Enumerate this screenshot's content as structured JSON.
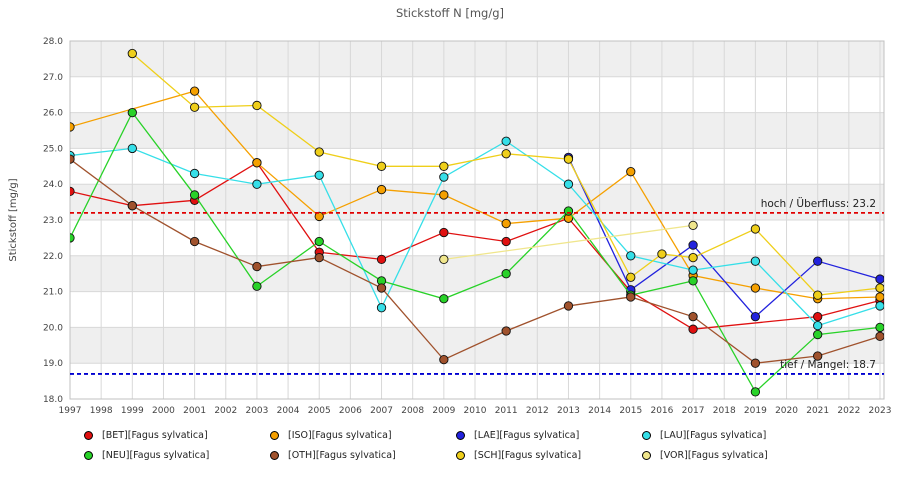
{
  "chart_data": {
    "type": "line",
    "title": "Stickstoff N [mg/g]",
    "ylabel": "Stickstoff [mg/g]",
    "ylim": [
      18.0,
      28.0
    ],
    "ytick_step": 1.0,
    "ytick_format_decimals": 1,
    "xlim": [
      1997,
      2023
    ],
    "xticks": [
      1997,
      1998,
      1999,
      2000,
      2001,
      2002,
      2003,
      2004,
      2005,
      2006,
      2007,
      2008,
      2009,
      2010,
      2011,
      2012,
      2013,
      2014,
      2015,
      2016,
      2017,
      2018,
      2019,
      2020,
      2021,
      2022,
      2023
    ],
    "grid": true,
    "band_fill_ranges": [
      [
        19,
        20
      ],
      [
        21,
        22
      ],
      [
        23,
        24
      ],
      [
        25,
        26
      ],
      [
        27,
        28
      ]
    ],
    "band_fill_color": "#efefef",
    "grid_color": "#d8d8d8",
    "border_color": "#c0c0c0",
    "legend_position": "bottom",
    "thresholds": [
      {
        "label": "hoch / Überfluss: 23.2",
        "value": 23.2,
        "color": "#e00000"
      },
      {
        "label": "tief / Mangel: 18.7",
        "value": 18.7,
        "color": "#0000d0"
      }
    ],
    "series": [
      {
        "name": "[BET][Fagus sylvatica]",
        "color": "#e01010",
        "points": [
          [
            1997,
            23.8
          ],
          [
            1999,
            23.4
          ],
          [
            2001,
            23.55
          ],
          [
            2003,
            24.6
          ],
          [
            2005,
            22.1
          ],
          [
            2007,
            21.9
          ],
          [
            2009,
            22.65
          ],
          [
            2011,
            22.4
          ],
          [
            2013,
            23.05
          ],
          [
            2015,
            21.0
          ],
          [
            2017,
            19.95
          ],
          [
            2021,
            20.3
          ],
          [
            2023,
            20.75
          ]
        ]
      },
      {
        "name": "[ISO][Fagus sylvatica]",
        "color": "#f5a000",
        "points": [
          [
            1997,
            25.6
          ],
          [
            2001,
            26.6
          ],
          [
            2003,
            24.6
          ],
          [
            2005,
            23.1
          ],
          [
            2007,
            23.85
          ],
          [
            2009,
            23.7
          ],
          [
            2011,
            22.9
          ],
          [
            2013,
            23.05
          ],
          [
            2015,
            24.35
          ],
          [
            2017,
            21.45
          ],
          [
            2019,
            21.1
          ],
          [
            2021,
            20.8
          ],
          [
            2023,
            20.85
          ]
        ]
      },
      {
        "name": "[LAE][Fagus sylvatica]",
        "color": "#2222dd",
        "points": [
          [
            2013,
            24.75
          ],
          [
            2015,
            21.05
          ],
          [
            2017,
            22.3
          ],
          [
            2019,
            20.3
          ],
          [
            2021,
            21.85
          ],
          [
            2023,
            21.35
          ]
        ]
      },
      {
        "name": "[LAU][Fagus sylvatica]",
        "color": "#35dfe8",
        "points": [
          [
            1997,
            24.8
          ],
          [
            1999,
            25.0
          ],
          [
            2001,
            24.3
          ],
          [
            2003,
            24.0
          ],
          [
            2005,
            24.25
          ],
          [
            2007,
            20.55
          ],
          [
            2009,
            24.2
          ],
          [
            2011,
            25.2
          ],
          [
            2013,
            24.0
          ],
          [
            2015,
            22.0
          ],
          [
            2017,
            21.6
          ],
          [
            2019,
            21.85
          ],
          [
            2021,
            20.05
          ],
          [
            2023,
            20.6
          ]
        ]
      },
      {
        "name": "[NEU][Fagus sylvatica]",
        "color": "#28d228",
        "points": [
          [
            1997,
            22.5
          ],
          [
            1999,
            26.0
          ],
          [
            2001,
            23.7
          ],
          [
            2003,
            21.15
          ],
          [
            2005,
            22.4
          ],
          [
            2007,
            21.3
          ],
          [
            2009,
            20.8
          ],
          [
            2011,
            21.5
          ],
          [
            2013,
            23.25
          ],
          [
            2015,
            20.9
          ],
          [
            2017,
            21.3
          ],
          [
            2019,
            18.2
          ],
          [
            2021,
            19.8
          ],
          [
            2023,
            20.0
          ]
        ]
      },
      {
        "name": "[OTH][Fagus sylvatica]",
        "color": "#a0522d",
        "points": [
          [
            1997,
            24.7
          ],
          [
            1999,
            23.4
          ],
          [
            2001,
            22.4
          ],
          [
            2003,
            21.7
          ],
          [
            2005,
            21.95
          ],
          [
            2007,
            21.1
          ],
          [
            2009,
            19.1
          ],
          [
            2011,
            19.9
          ],
          [
            2013,
            20.6
          ],
          [
            2015,
            20.85
          ],
          [
            2017,
            20.3
          ],
          [
            2019,
            19.0
          ],
          [
            2021,
            19.2
          ],
          [
            2023,
            19.75
          ]
        ]
      },
      {
        "name": "[SCH][Fagus sylvatica]",
        "color": "#efcf1a",
        "points": [
          [
            1999,
            27.65
          ],
          [
            2001,
            26.15
          ],
          [
            2003,
            26.2
          ],
          [
            2005,
            24.9
          ],
          [
            2007,
            24.5
          ],
          [
            2009,
            24.5
          ],
          [
            2011,
            24.85
          ],
          [
            2013,
            24.7
          ],
          [
            2015,
            21.4
          ],
          [
            2016,
            22.05
          ],
          [
            2017,
            21.95
          ],
          [
            2019,
            22.75
          ],
          [
            2021,
            20.9
          ],
          [
            2023,
            21.1
          ]
        ]
      },
      {
        "name": "[VOR][Fagus sylvatica]",
        "color": "#f0e68c",
        "points": [
          [
            2009,
            21.9
          ],
          [
            2017,
            22.85
          ]
        ]
      }
    ]
  }
}
